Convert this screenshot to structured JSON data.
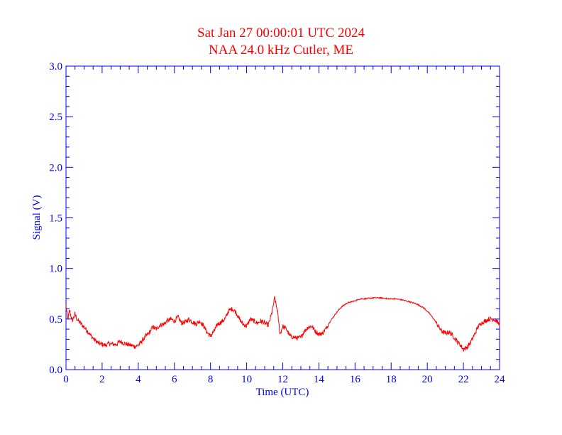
{
  "chart_data": {
    "type": "line",
    "title": "Sat Jan 27 00:00:01 UTC 2024",
    "subtitle": "NAA 24.0 kHz Cutler, ME",
    "xlabel": "Time (UTC)",
    "ylabel": "Signal (V)",
    "xlim": [
      0,
      24
    ],
    "ylim": [
      0.0,
      3.0
    ],
    "x_ticks": [
      "0",
      "2",
      "4",
      "6",
      "8",
      "10",
      "12",
      "14",
      "16",
      "18",
      "20",
      "22",
      "24"
    ],
    "y_ticks": [
      "0.0",
      "0.5",
      "1.0",
      "1.5",
      "2.0",
      "2.5",
      "3.0"
    ],
    "grid": false,
    "colors": {
      "line": "#ff0000",
      "axes": "#0000ff",
      "title": "#ff0000"
    },
    "series": [
      {
        "x": [
          0.0,
          0.1,
          0.2,
          0.35,
          0.5,
          0.6,
          0.8,
          1.0,
          1.2,
          1.4,
          1.6,
          1.8,
          2.0,
          2.2,
          2.4,
          2.6,
          2.8,
          3.0,
          3.2,
          3.4,
          3.6,
          3.8,
          4.0,
          4.2,
          4.4,
          4.6,
          4.8,
          5.0,
          5.2,
          5.4,
          5.6,
          5.8,
          6.0,
          6.2,
          6.4,
          6.6,
          6.8,
          7.0,
          7.2,
          7.4,
          7.6,
          7.8,
          8.0,
          8.2,
          8.4,
          8.6,
          8.8,
          9.0,
          9.2,
          9.4,
          9.6,
          9.8,
          10.0,
          10.2,
          10.4,
          10.6,
          10.8,
          11.0,
          11.2,
          11.4,
          11.55,
          11.7,
          11.85,
          12.0,
          12.2,
          12.4,
          12.6,
          12.8,
          13.0,
          13.2,
          13.4,
          13.6,
          13.8,
          14.0,
          14.2,
          14.4,
          14.6,
          14.8,
          15.0,
          15.2,
          15.4,
          15.6,
          15.8,
          16.0,
          16.3,
          16.6,
          17.0,
          17.4,
          17.8,
          18.2,
          18.6,
          19.0,
          19.4,
          19.8,
          20.1,
          20.4,
          20.6,
          20.8,
          21.0,
          21.2,
          21.4,
          21.6,
          21.8,
          22.0,
          22.2,
          22.4,
          22.6,
          22.8,
          23.0,
          23.2,
          23.4,
          23.6,
          23.8,
          24.0
        ],
        "y": [
          0.63,
          0.5,
          0.58,
          0.48,
          0.55,
          0.5,
          0.46,
          0.42,
          0.38,
          0.33,
          0.29,
          0.26,
          0.25,
          0.24,
          0.26,
          0.25,
          0.25,
          0.28,
          0.26,
          0.25,
          0.24,
          0.23,
          0.24,
          0.28,
          0.33,
          0.36,
          0.42,
          0.4,
          0.44,
          0.45,
          0.48,
          0.5,
          0.48,
          0.52,
          0.46,
          0.47,
          0.5,
          0.47,
          0.45,
          0.48,
          0.44,
          0.37,
          0.33,
          0.38,
          0.45,
          0.47,
          0.5,
          0.58,
          0.6,
          0.57,
          0.5,
          0.45,
          0.43,
          0.5,
          0.48,
          0.46,
          0.48,
          0.46,
          0.44,
          0.56,
          0.71,
          0.58,
          0.35,
          0.43,
          0.4,
          0.33,
          0.32,
          0.31,
          0.32,
          0.38,
          0.42,
          0.43,
          0.38,
          0.35,
          0.36,
          0.41,
          0.47,
          0.52,
          0.57,
          0.61,
          0.64,
          0.66,
          0.67,
          0.68,
          0.7,
          0.7,
          0.71,
          0.71,
          0.7,
          0.7,
          0.69,
          0.67,
          0.65,
          0.61,
          0.56,
          0.49,
          0.43,
          0.38,
          0.36,
          0.37,
          0.34,
          0.29,
          0.25,
          0.2,
          0.22,
          0.27,
          0.34,
          0.42,
          0.46,
          0.48,
          0.5,
          0.5,
          0.49,
          0.44
        ]
      }
    ]
  }
}
